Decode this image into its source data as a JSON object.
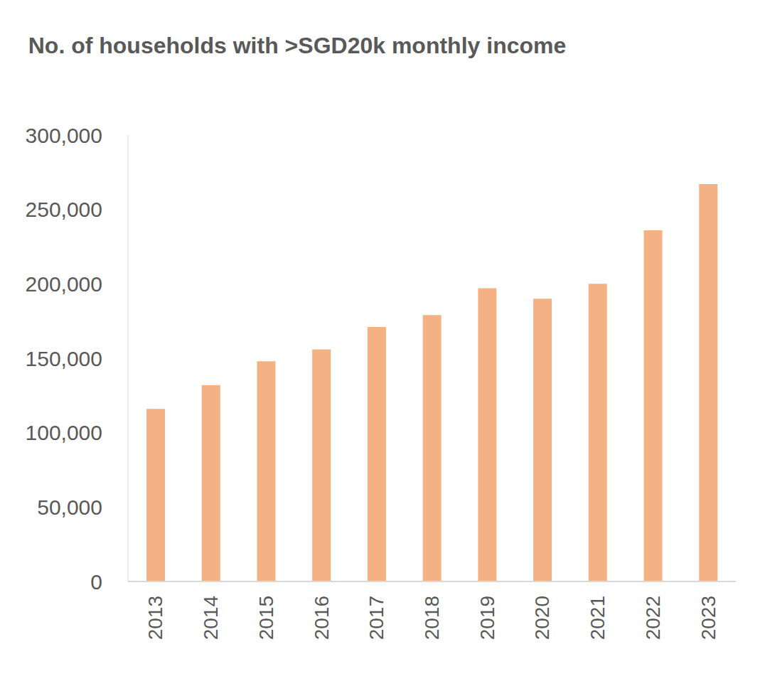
{
  "chart_data": {
    "type": "bar",
    "title": "No. of households with >SGD20k monthly income",
    "categories": [
      "2013",
      "2014",
      "2015",
      "2016",
      "2017",
      "2018",
      "2019",
      "2020",
      "2021",
      "2022",
      "2023"
    ],
    "values": [
      116000,
      132000,
      148000,
      156000,
      171000,
      179000,
      197000,
      190000,
      200000,
      236000,
      267000
    ],
    "color": "#f4b183",
    "ylim": [
      0,
      300000
    ],
    "yticks": [
      0,
      {
        "value": 50000,
        "label": "50,000"
      },
      {
        "value": 100000,
        "label": "100,000"
      },
      {
        "value": 150000,
        "label": "150,000"
      },
      {
        "value": 200000,
        "label": "200,000"
      },
      {
        "value": 250000,
        "label": "250,000"
      },
      {
        "value": 300000,
        "label": "300,000"
      }
    ],
    "grid": false
  }
}
